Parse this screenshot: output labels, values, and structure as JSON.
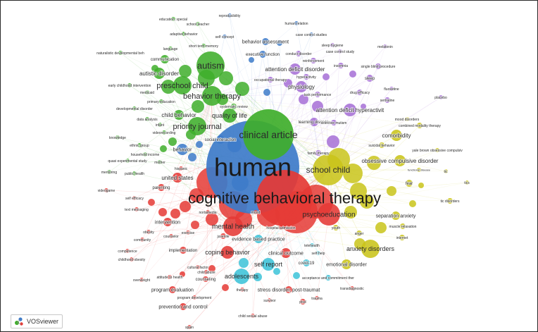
{
  "app": {
    "logo_label": "VOSviewer"
  },
  "palette": {
    "red": "#e53935",
    "green": "#3fae2b",
    "blue": "#3d7bc9",
    "yellow": "#c9c41a",
    "purple": "#a66fd6",
    "cyan": "#3cc3d8",
    "grey": "#9e9e9e"
  },
  "network": {
    "nodes": [
      {
        "label": "human",
        "cluster": "blue",
        "weight": 10
      },
      {
        "label": "cognitive behavioral therapy",
        "cluster": "red",
        "weight": 9
      },
      {
        "label": "clinical article",
        "cluster": "green",
        "weight": 6
      },
      {
        "label": "autism",
        "cluster": "green",
        "weight": 5
      },
      {
        "label": "school child",
        "cluster": "yellow",
        "weight": 5
      },
      {
        "label": "preschool child",
        "cluster": "green",
        "weight": 4
      },
      {
        "label": "behavior therapy",
        "cluster": "green",
        "weight": 4
      },
      {
        "label": "priority journal",
        "cluster": "green",
        "weight": 4
      },
      {
        "label": "psychoeducation",
        "cluster": "red",
        "weight": 4
      },
      {
        "label": "mental health",
        "cluster": "red",
        "weight": 4
      },
      {
        "label": "adolescents",
        "cluster": "cyan",
        "weight": 4
      },
      {
        "label": "anxiety disorders",
        "cluster": "yellow",
        "weight": 3
      },
      {
        "label": "obsessive compulsive disorder",
        "cluster": "yellow",
        "weight": 3
      },
      {
        "label": "attention deficit hyperactivit",
        "cluster": "purple",
        "weight": 3
      },
      {
        "label": "attention deficit disorder",
        "cluster": "purple",
        "weight": 3
      },
      {
        "label": "comorbidity",
        "cluster": "yellow",
        "weight": 3
      },
      {
        "label": "self report",
        "cluster": "cyan",
        "weight": 3
      },
      {
        "label": "coping behavior",
        "cluster": "red",
        "weight": 3
      },
      {
        "label": "quality of life",
        "cluster": "green",
        "weight": 3
      },
      {
        "label": "child behavior",
        "cluster": "green",
        "weight": 2
      },
      {
        "label": "autistic disorder",
        "cluster": "green",
        "weight": 2
      },
      {
        "label": "physiology",
        "cluster": "purple",
        "weight": 2
      },
      {
        "label": "behavior assessment",
        "cluster": "blue",
        "weight": 2
      },
      {
        "label": "clinical outcome",
        "cluster": "red",
        "weight": 2
      },
      {
        "label": "emotional disorder",
        "cluster": "yellow",
        "weight": 2
      },
      {
        "label": "evidence based practice",
        "cluster": "cyan",
        "weight": 2
      },
      {
        "label": "united states",
        "cluster": "red",
        "weight": 2
      },
      {
        "label": "separation anxiety",
        "cluster": "yellow",
        "weight": 2
      },
      {
        "label": "intervention",
        "cluster": "red",
        "weight": 2
      },
      {
        "label": "stress disorder, post-traumat",
        "cluster": "red",
        "weight": 2
      },
      {
        "label": "program evaluation",
        "cluster": "red",
        "weight": 2
      },
      {
        "label": "prevention and control",
        "cluster": "red",
        "weight": 2
      },
      {
        "label": "communication",
        "cluster": "green",
        "weight": 2
      },
      {
        "label": "behavior",
        "cluster": "blue",
        "weight": 2
      },
      {
        "label": "social interaction",
        "cluster": "blue",
        "weight": 2
      },
      {
        "label": "learning disorder",
        "cluster": "purple",
        "weight": 2
      },
      {
        "label": "executive function",
        "cluster": "blue",
        "weight": 2
      },
      {
        "label": "sleep",
        "cluster": "purple",
        "weight": 2
      },
      {
        "label": "fear",
        "cluster": "yellow",
        "weight": 2
      },
      {
        "label": "parenting",
        "cluster": "red",
        "weight": 2
      },
      {
        "label": "implementation",
        "cluster": "red",
        "weight": 2
      },
      {
        "label": "counseling",
        "cluster": "red",
        "weight": 1
      },
      {
        "label": "juvenile",
        "cluster": "red",
        "weight": 1
      },
      {
        "label": "covid-19",
        "cluster": "cyan",
        "weight": 1
      },
      {
        "label": "acceptance and commitment ther",
        "cluster": "cyan",
        "weight": 1
      },
      {
        "label": "anger",
        "cluster": "yellow",
        "weight": 1
      },
      {
        "label": "internet",
        "cluster": "yellow",
        "weight": 1
      },
      {
        "label": "youth",
        "cluster": "yellow",
        "weight": 1
      },
      {
        "label": "muscle relaxation",
        "cluster": "yellow",
        "weight": 1
      },
      {
        "label": "tic disorders",
        "cluster": "yellow",
        "weight": 1
      },
      {
        "label": "tics",
        "cluster": "yellow",
        "weight": 1
      },
      {
        "label": "tic",
        "cluster": "yellow",
        "weight": 1
      },
      {
        "label": "functional disease",
        "cluster": "yellow",
        "weight": 1
      },
      {
        "label": "yale brown obsessive compulsiv",
        "cluster": "yellow",
        "weight": 1
      },
      {
        "label": "suicidal behavior",
        "cluster": "yellow",
        "weight": 1
      },
      {
        "label": "combined modality therapy",
        "cluster": "yellow",
        "weight": 1
      },
      {
        "label": "mood disorders",
        "cluster": "yellow",
        "weight": 1
      },
      {
        "label": "placebo",
        "cluster": "purple",
        "weight": 1
      },
      {
        "label": "sertraline",
        "cluster": "purple",
        "weight": 1
      },
      {
        "label": "fluoxetine",
        "cluster": "purple",
        "weight": 1
      },
      {
        "label": "drug efficacy",
        "cluster": "purple",
        "weight": 1
      },
      {
        "label": "task performance",
        "cluster": "purple",
        "weight": 1
      },
      {
        "label": "hyperactivity",
        "cluster": "purple",
        "weight": 1
      },
      {
        "label": "occupational therapy",
        "cluster": "purple",
        "weight": 1
      },
      {
        "label": "reinforcement",
        "cluster": "purple",
        "weight": 1
      },
      {
        "label": "insomnia",
        "cluster": "purple",
        "weight": 1
      },
      {
        "label": "single blind procedure",
        "cluster": "purple",
        "weight": 1
      },
      {
        "label": "melatonin",
        "cluster": "purple",
        "weight": 1
      },
      {
        "label": "sleep hygiene",
        "cluster": "purple",
        "weight": 1
      },
      {
        "label": "case control study",
        "cluster": "purple",
        "weight": 1
      },
      {
        "label": "case control studies",
        "cluster": "blue",
        "weight": 1
      },
      {
        "label": "conduct disorder",
        "cluster": "purple",
        "weight": 1
      },
      {
        "label": "selective mutism",
        "cluster": "purple",
        "weight": 1
      },
      {
        "label": "family therapy",
        "cluster": "purple",
        "weight": 1
      },
      {
        "label": "systematic review",
        "cluster": "green",
        "weight": 1
      },
      {
        "label": "self concept",
        "cluster": "blue",
        "weight": 1
      },
      {
        "label": "human relation",
        "cluster": "blue",
        "weight": 1
      },
      {
        "label": "reproducibility",
        "cluster": "blue",
        "weight": 1
      },
      {
        "label": "education, special",
        "cluster": "green",
        "weight": 1
      },
      {
        "label": "school teacher",
        "cluster": "green",
        "weight": 1
      },
      {
        "label": "adaptive behavior",
        "cluster": "green",
        "weight": 1
      },
      {
        "label": "short term memory",
        "cluster": "green",
        "weight": 1
      },
      {
        "label": "language",
        "cluster": "green",
        "weight": 1
      },
      {
        "label": "naturalistic developmental beh",
        "cluster": "green",
        "weight": 1
      },
      {
        "label": "early childhood intervention",
        "cluster": "green",
        "weight": 1
      },
      {
        "label": "medicaid",
        "cluster": "green",
        "weight": 1
      },
      {
        "label": "primary education",
        "cluster": "green",
        "weight": 1
      },
      {
        "label": "developmental disorder",
        "cluster": "green",
        "weight": 1
      },
      {
        "label": "data analysis",
        "cluster": "green",
        "weight": 1
      },
      {
        "label": "infant",
        "cluster": "green",
        "weight": 1
      },
      {
        "label": "videorecording",
        "cluster": "green",
        "weight": 1
      },
      {
        "label": "knowledge",
        "cluster": "green",
        "weight": 1
      },
      {
        "label": "ethnic group",
        "cluster": "green",
        "weight": 1
      },
      {
        "label": "household income",
        "cluster": "green",
        "weight": 1
      },
      {
        "label": "quasi experimental study",
        "cluster": "green",
        "weight": 1
      },
      {
        "label": "mother",
        "cluster": "green",
        "weight": 1
      },
      {
        "label": "mentoring",
        "cluster": "green",
        "weight": 1
      },
      {
        "label": "public health",
        "cluster": "green",
        "weight": 1
      },
      {
        "label": "hispanic",
        "cluster": "red",
        "weight": 1
      },
      {
        "label": "videogame",
        "cluster": "red",
        "weight": 1
      },
      {
        "label": "self efficacy",
        "cluster": "red",
        "weight": 1
      },
      {
        "label": "text messaging",
        "cluster": "red",
        "weight": 1
      },
      {
        "label": "obesity",
        "cluster": "red",
        "weight": 1
      },
      {
        "label": "community",
        "cluster": "red",
        "weight": 1
      },
      {
        "label": "counselor",
        "cluster": "red",
        "weight": 1
      },
      {
        "label": "exercise",
        "cluster": "red",
        "weight": 1
      },
      {
        "label": "competence",
        "cluster": "red",
        "weight": 1
      },
      {
        "label": "childhood obesity",
        "cluster": "red",
        "weight": 1
      },
      {
        "label": "cultural factor",
        "cluster": "red",
        "weight": 1
      },
      {
        "label": "attitude to health",
        "cluster": "red",
        "weight": 1
      },
      {
        "label": "overweight",
        "cluster": "red",
        "weight": 1
      },
      {
        "label": "child abuse",
        "cluster": "red",
        "weight": 1
      },
      {
        "label": "program development",
        "cluster": "red",
        "weight": 1
      },
      {
        "label": "therapy",
        "cluster": "red",
        "weight": 1
      },
      {
        "label": "child sexual abuse",
        "cluster": "red",
        "weight": 1
      },
      {
        "label": "spain",
        "cluster": "red",
        "weight": 1
      },
      {
        "label": "survivor",
        "cluster": "red",
        "weight": 1
      },
      {
        "label": "ptsd",
        "cluster": "red",
        "weight": 1
      },
      {
        "label": "trauma",
        "cluster": "red",
        "weight": 1
      },
      {
        "label": "transdiagnostic",
        "cluster": "red",
        "weight": 1
      },
      {
        "label": "telehealth",
        "cluster": "cyan",
        "weight": 1
      },
      {
        "label": "self-help",
        "cluster": "cyan",
        "weight": 1
      },
      {
        "label": "hospital admission",
        "cluster": "red",
        "weight": 1
      },
      {
        "label": "mood",
        "cluster": "red",
        "weight": 1
      },
      {
        "label": "nortamedia",
        "cluster": "red",
        "weight": 1
      }
    ]
  }
}
